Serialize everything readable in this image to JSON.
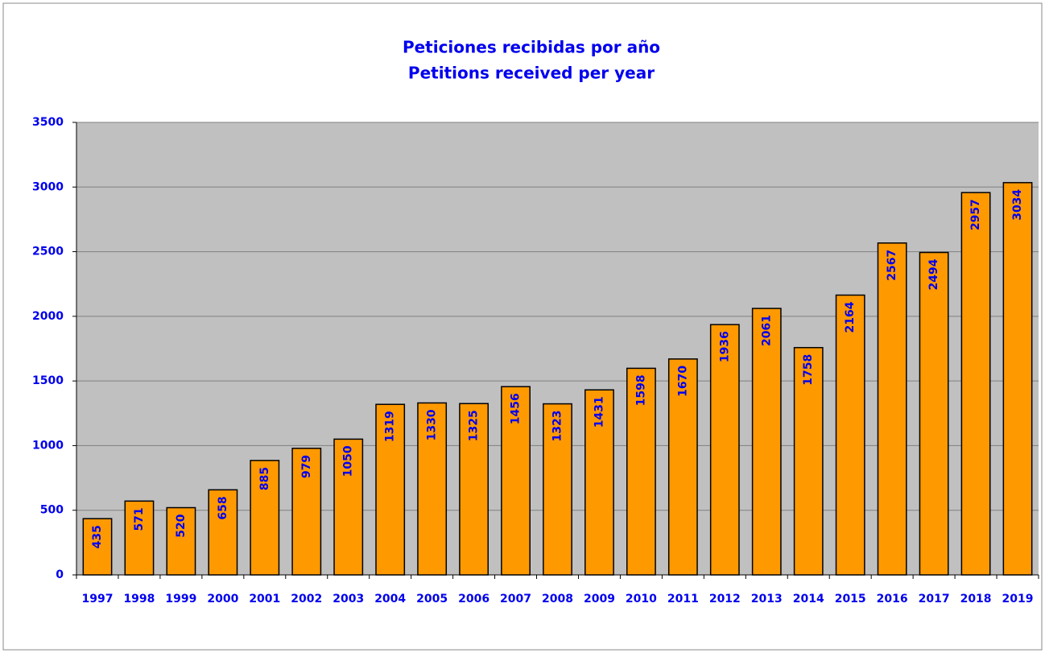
{
  "chart_data": {
    "type": "bar",
    "title": "Peticiones recibidas por año",
    "subtitle": "Petitions received per year",
    "categories": [
      "1997",
      "1998",
      "1999",
      "2000",
      "2001",
      "2002",
      "2003",
      "2004",
      "2005",
      "2006",
      "2007",
      "2008",
      "2009",
      "2010",
      "2011",
      "2012",
      "2013",
      "2014",
      "2015",
      "2016",
      "2017",
      "2018",
      "2019"
    ],
    "values": [
      435,
      571,
      520,
      658,
      885,
      979,
      1050,
      1319,
      1330,
      1325,
      1456,
      1323,
      1431,
      1598,
      1670,
      1936,
      2061,
      1758,
      2164,
      2567,
      2494,
      2957,
      3034
    ],
    "color": "#ff9900",
    "ylim": [
      0,
      3500
    ],
    "yticks": [
      0,
      500,
      1000,
      1500,
      2000,
      2500,
      3000,
      3500
    ],
    "grid": true
  }
}
